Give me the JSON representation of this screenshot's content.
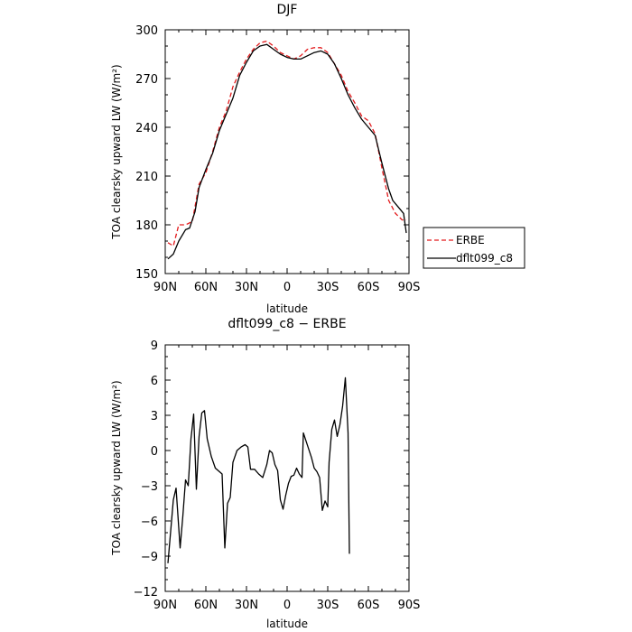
{
  "chart_data": [
    {
      "type": "line",
      "title": "DJF",
      "xlabel": "latitude",
      "ylabel": "TOA clearsky upward LW (W/m²)",
      "xlim": [
        90,
        -90
      ],
      "ylim": [
        150,
        300
      ],
      "x_ticks": [
        90,
        60,
        30,
        0,
        -30,
        -60,
        -90
      ],
      "x_tick_labels": [
        "90N",
        "60N",
        "30N",
        "0",
        "30S",
        "60S",
        "90S"
      ],
      "y_ticks": [
        150,
        180,
        210,
        240,
        270,
        300
      ],
      "y_tick_labels": [
        "150",
        "180",
        "210",
        "240",
        "270",
        "300"
      ],
      "legend_position": "right",
      "series": [
        {
          "name": "ERBE",
          "color": "#e31a1c",
          "dash": "dashed",
          "points": [
            [
              88,
              169
            ],
            [
              84,
              167
            ],
            [
              80,
              180
            ],
            [
              75,
              180
            ],
            [
              70,
              182
            ],
            [
              65,
              205
            ],
            [
              60,
              212
            ],
            [
              55,
              225
            ],
            [
              50,
              240
            ],
            [
              45,
              250
            ],
            [
              40,
              265
            ],
            [
              35,
              274
            ],
            [
              30,
              282
            ],
            [
              25,
              288
            ],
            [
              20,
              292
            ],
            [
              15,
              293
            ],
            [
              10,
              290
            ],
            [
              5,
              286
            ],
            [
              0,
              284
            ],
            [
              -5,
              282
            ],
            [
              -10,
              284
            ],
            [
              -15,
              288
            ],
            [
              -20,
              289
            ],
            [
              -25,
              289
            ],
            [
              -30,
              286
            ],
            [
              -35,
              279
            ],
            [
              -40,
              272
            ],
            [
              -45,
              262
            ],
            [
              -50,
              255
            ],
            [
              -55,
              247
            ],
            [
              -60,
              244
            ],
            [
              -65,
              236
            ],
            [
              -70,
              215
            ],
            [
              -75,
              195
            ],
            [
              -80,
              187
            ],
            [
              -85,
              183
            ],
            [
              -88,
              183
            ]
          ]
        },
        {
          "name": "dflt099_c8",
          "color": "#000000",
          "dash": "solid",
          "points": [
            [
              88,
              159
            ],
            [
              84,
              162
            ],
            [
              80,
              170
            ],
            [
              75,
              177
            ],
            [
              72,
              178
            ],
            [
              68,
              188
            ],
            [
              65,
              203
            ],
            [
              60,
              214
            ],
            [
              55,
              224
            ],
            [
              50,
              238
            ],
            [
              45,
              248
            ],
            [
              40,
              258
            ],
            [
              35,
              272
            ],
            [
              30,
              280
            ],
            [
              25,
              287
            ],
            [
              20,
              290
            ],
            [
              15,
              291
            ],
            [
              10,
              288
            ],
            [
              5,
              285
            ],
            [
              0,
              283
            ],
            [
              -5,
              282
            ],
            [
              -10,
              282
            ],
            [
              -15,
              284
            ],
            [
              -20,
              286
            ],
            [
              -25,
              287
            ],
            [
              -30,
              285
            ],
            [
              -35,
              279
            ],
            [
              -40,
              270
            ],
            [
              -45,
              260
            ],
            [
              -50,
              252
            ],
            [
              -55,
              245
            ],
            [
              -60,
              240
            ],
            [
              -65,
              235
            ],
            [
              -70,
              218
            ],
            [
              -75,
              202
            ],
            [
              -78,
              195
            ],
            [
              -82,
              191
            ],
            [
              -86,
              187
            ],
            [
              -88,
              175
            ]
          ]
        }
      ]
    },
    {
      "type": "line",
      "title": "dflt099_c8 − ERBE",
      "xlabel": "latitude",
      "ylabel": "TOA clearsky upward LW (W/m²)",
      "xlim": [
        90,
        -90
      ],
      "ylim": [
        -12,
        9
      ],
      "x_ticks": [
        90,
        60,
        30,
        0,
        -30,
        -60,
        -90
      ],
      "x_tick_labels": [
        "90N",
        "60N",
        "30N",
        "0",
        "30S",
        "60S",
        "90S"
      ],
      "y_ticks": [
        -12,
        -9,
        -6,
        -3,
        0,
        3,
        6,
        9
      ],
      "y_tick_labels": [
        "−12",
        "−9",
        "−6",
        "−3",
        "0",
        "3",
        "6",
        "9"
      ],
      "series": [
        {
          "color": "#000000",
          "dash": "solid",
          "points": [
            [
              88,
              -9.6
            ],
            [
              84,
              -4.2
            ],
            [
              82,
              -3.2
            ],
            [
              79,
              -8.3
            ],
            [
              77,
              -5.6
            ],
            [
              75,
              -2.5
            ],
            [
              73,
              -3.0
            ],
            [
              71,
              1.0
            ],
            [
              69,
              3.1
            ],
            [
              67,
              -3.3
            ],
            [
              65,
              1.2
            ],
            [
              63,
              3.2
            ],
            [
              61,
              3.4
            ],
            [
              59,
              1.0
            ],
            [
              56,
              -0.5
            ],
            [
              53,
              -1.5
            ],
            [
              50,
              -1.8
            ],
            [
              48,
              -2.0
            ],
            [
              46,
              -8.3
            ],
            [
              44,
              -4.5
            ],
            [
              42,
              -4.0
            ],
            [
              40,
              -1.0
            ],
            [
              37,
              0.0
            ],
            [
              34,
              0.3
            ],
            [
              31,
              0.5
            ],
            [
              29,
              0.3
            ],
            [
              27,
              -1.6
            ],
            [
              24,
              -1.6
            ],
            [
              21,
              -2.0
            ],
            [
              18,
              -2.3
            ],
            [
              15,
              -1.2
            ],
            [
              13,
              0.0
            ],
            [
              11,
              -0.2
            ],
            [
              9,
              -1.2
            ],
            [
              7,
              -1.7
            ],
            [
              5,
              -4.2
            ],
            [
              3,
              -5.0
            ],
            [
              1,
              -3.8
            ],
            [
              -1,
              -2.8
            ],
            [
              -3,
              -2.2
            ],
            [
              -5,
              -2.1
            ],
            [
              -7,
              -1.5
            ],
            [
              -9,
              -2.0
            ],
            [
              -11,
              -2.3
            ],
            [
              -12,
              1.5
            ],
            [
              -14,
              0.8
            ],
            [
              -16,
              0.1
            ],
            [
              -18,
              -0.6
            ],
            [
              -20,
              -1.5
            ],
            [
              -22,
              -1.8
            ],
            [
              -24,
              -2.3
            ],
            [
              -26,
              -5.1
            ],
            [
              -28,
              -4.3
            ],
            [
              -30,
              -4.8
            ],
            [
              -31,
              -1.0
            ],
            [
              -33,
              1.8
            ],
            [
              -35,
              2.6
            ],
            [
              -37,
              1.2
            ],
            [
              -39,
              2.2
            ],
            [
              -41,
              3.8
            ],
            [
              -43,
              6.2
            ],
            [
              -45,
              1.5
            ],
            [
              -46,
              -8.8
            ]
          ]
        }
      ]
    }
  ]
}
